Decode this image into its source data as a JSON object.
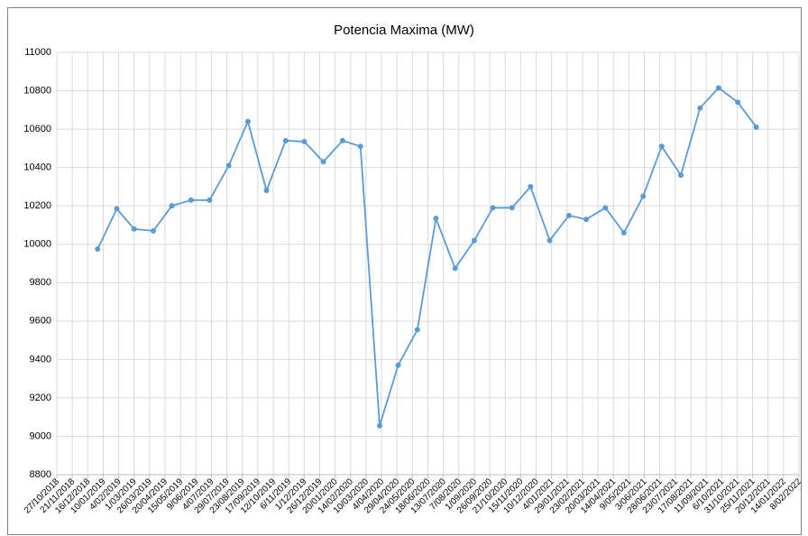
{
  "chart_data": {
    "type": "line",
    "title": "Potencia Maxima (MW)",
    "x": [
      "1/01/2019",
      "1/02/2019",
      "1/03/2019",
      "1/04/2019",
      "1/05/2019",
      "1/06/2019",
      "1/07/2019",
      "1/08/2019",
      "1/09/2019",
      "1/10/2019",
      "1/11/2019",
      "1/12/2019",
      "1/01/2020",
      "1/02/2020",
      "1/03/2020",
      "1/04/2020",
      "1/05/2020",
      "1/06/2020",
      "1/07/2020",
      "1/08/2020",
      "1/09/2020",
      "1/10/2020",
      "1/11/2020",
      "1/12/2020",
      "1/01/2021",
      "1/02/2021",
      "1/03/2021",
      "1/04/2021",
      "1/05/2021",
      "1/06/2021",
      "1/07/2021",
      "1/08/2021",
      "1/09/2021",
      "1/10/2021",
      "1/11/2021",
      "1/12/2021"
    ],
    "series": [
      {
        "name": "Potencia Maxima (MW)",
        "color": "#5b9bd5",
        "values": [
          9975,
          10185,
          10080,
          10070,
          10200,
          10230,
          10230,
          10410,
          10640,
          10280,
          10540,
          10535,
          10430,
          10540,
          10510,
          9055,
          9370,
          9555,
          10135,
          9875,
          10020,
          10190,
          10190,
          10300,
          10020,
          10150,
          10130,
          10190,
          10060,
          10250,
          10510,
          10360,
          10710,
          10815,
          10740,
          10610
        ]
      }
    ],
    "xlim": [
      "27/10/2018",
      "8/02/2022"
    ],
    "xticks": [
      "27/10/2018",
      "21/11/2018",
      "16/12/2018",
      "10/01/2019",
      "4/02/2019",
      "1/03/2019",
      "26/03/2019",
      "20/04/2019",
      "15/05/2019",
      "9/06/2019",
      "4/07/2019",
      "29/07/2019",
      "23/08/2019",
      "17/09/2019",
      "12/10/2019",
      "6/11/2019",
      "1/12/2019",
      "26/12/2019",
      "20/01/2020",
      "14/02/2020",
      "10/03/2020",
      "4/04/2020",
      "29/04/2020",
      "24/05/2020",
      "18/06/2020",
      "13/07/2020",
      "7/08/2020",
      "1/09/2020",
      "26/09/2020",
      "21/10/2020",
      "15/11/2020",
      "10/12/2020",
      "4/01/2021",
      "29/01/2021",
      "23/02/2021",
      "20/03/2021",
      "14/04/2021",
      "9/05/2021",
      "3/06/2021",
      "28/06/2021",
      "23/07/2021",
      "17/08/2021",
      "11/09/2021",
      "6/10/2021",
      "31/10/2021",
      "25/11/2021",
      "20/12/2021",
      "14/01/2022",
      "8/02/2022"
    ],
    "ylim": [
      8800,
      11000
    ],
    "yticks": [
      8800,
      9000,
      9200,
      9400,
      9600,
      9800,
      10000,
      10200,
      10400,
      10600,
      10800,
      11000
    ],
    "grid": true
  }
}
